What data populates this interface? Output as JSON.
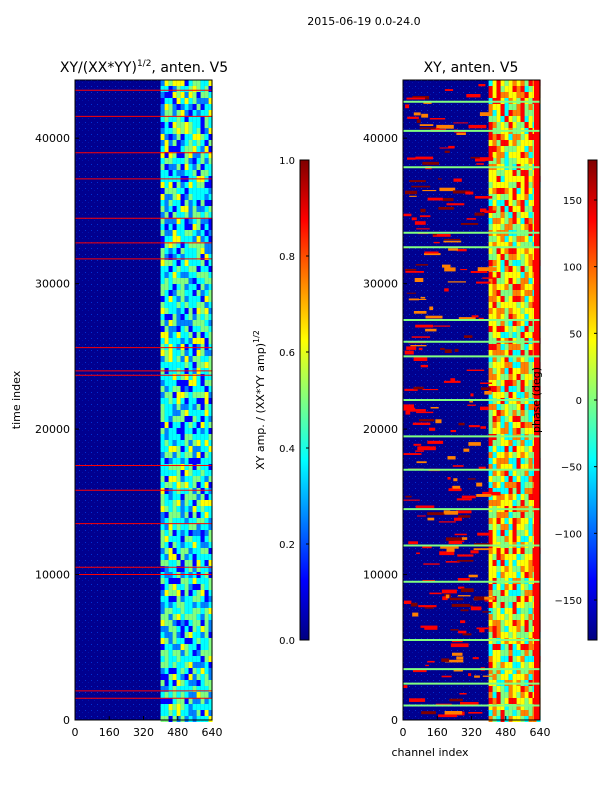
{
  "figure": {
    "suptitle": "2015-06-19 0.0-24.0"
  },
  "colors": {
    "jet": [
      "#000080",
      "#0000ff",
      "#0080ff",
      "#00ffff",
      "#80ff80",
      "#ffff00",
      "#ff8000",
      "#ff0000",
      "#800000"
    ],
    "background": "#00008f",
    "frame": "#000000"
  },
  "chart_data": [
    {
      "type": "heatmap",
      "title": "XY/(XX*YY)",
      "title_exponent": "1/2",
      "title_suffix": ", anten. V5",
      "xlabel": "",
      "ylabel": "time index",
      "xlim": [
        0,
        640
      ],
      "ylim": [
        0,
        44000
      ],
      "xticks": [
        0,
        160,
        320,
        480,
        640
      ],
      "yticks": [
        0,
        10000,
        20000,
        30000,
        40000
      ],
      "colorbar": {
        "label": "XY amp. / (XX*YY amp)",
        "label_exponent": "1/2",
        "range": [
          0.0,
          1.0
        ],
        "ticks": [
          "0.0",
          "0.2",
          "0.4",
          "0.6",
          "0.8",
          "1.0"
        ],
        "tick_values": [
          0.0,
          0.2,
          0.4,
          0.6,
          0.8,
          1.0
        ]
      },
      "bright_band_channels": [
        400,
        640
      ],
      "flagged_rows": [
        1500,
        2000,
        10000,
        10500,
        13500,
        15800,
        17500,
        23700,
        24000,
        25600,
        31700,
        32800,
        34500,
        37200,
        39000,
        41500,
        43300
      ]
    },
    {
      "type": "heatmap",
      "title": "XY, anten. V5",
      "xlabel": "channel index",
      "ylabel": "",
      "xlim": [
        0,
        640
      ],
      "ylim": [
        0,
        44000
      ],
      "xticks": [
        0,
        160,
        320,
        480,
        640
      ],
      "yticks": [
        0,
        10000,
        20000,
        30000,
        40000
      ],
      "colorbar": {
        "label": "phase (deg)",
        "range": [
          -180,
          180
        ],
        "ticks": [
          "−150",
          "−100",
          "−50",
          "0",
          "50",
          "100",
          "150"
        ],
        "tick_values": [
          -150,
          -100,
          -50,
          0,
          50,
          100,
          150
        ]
      },
      "bright_band_channels": [
        400,
        640
      ],
      "flagged_rows": [
        1000,
        2500,
        3500,
        5500,
        9500,
        12000,
        14500,
        17200,
        19500,
        22000,
        25000,
        26000,
        27500,
        32500,
        33500,
        38000,
        40500,
        42500
      ]
    }
  ]
}
